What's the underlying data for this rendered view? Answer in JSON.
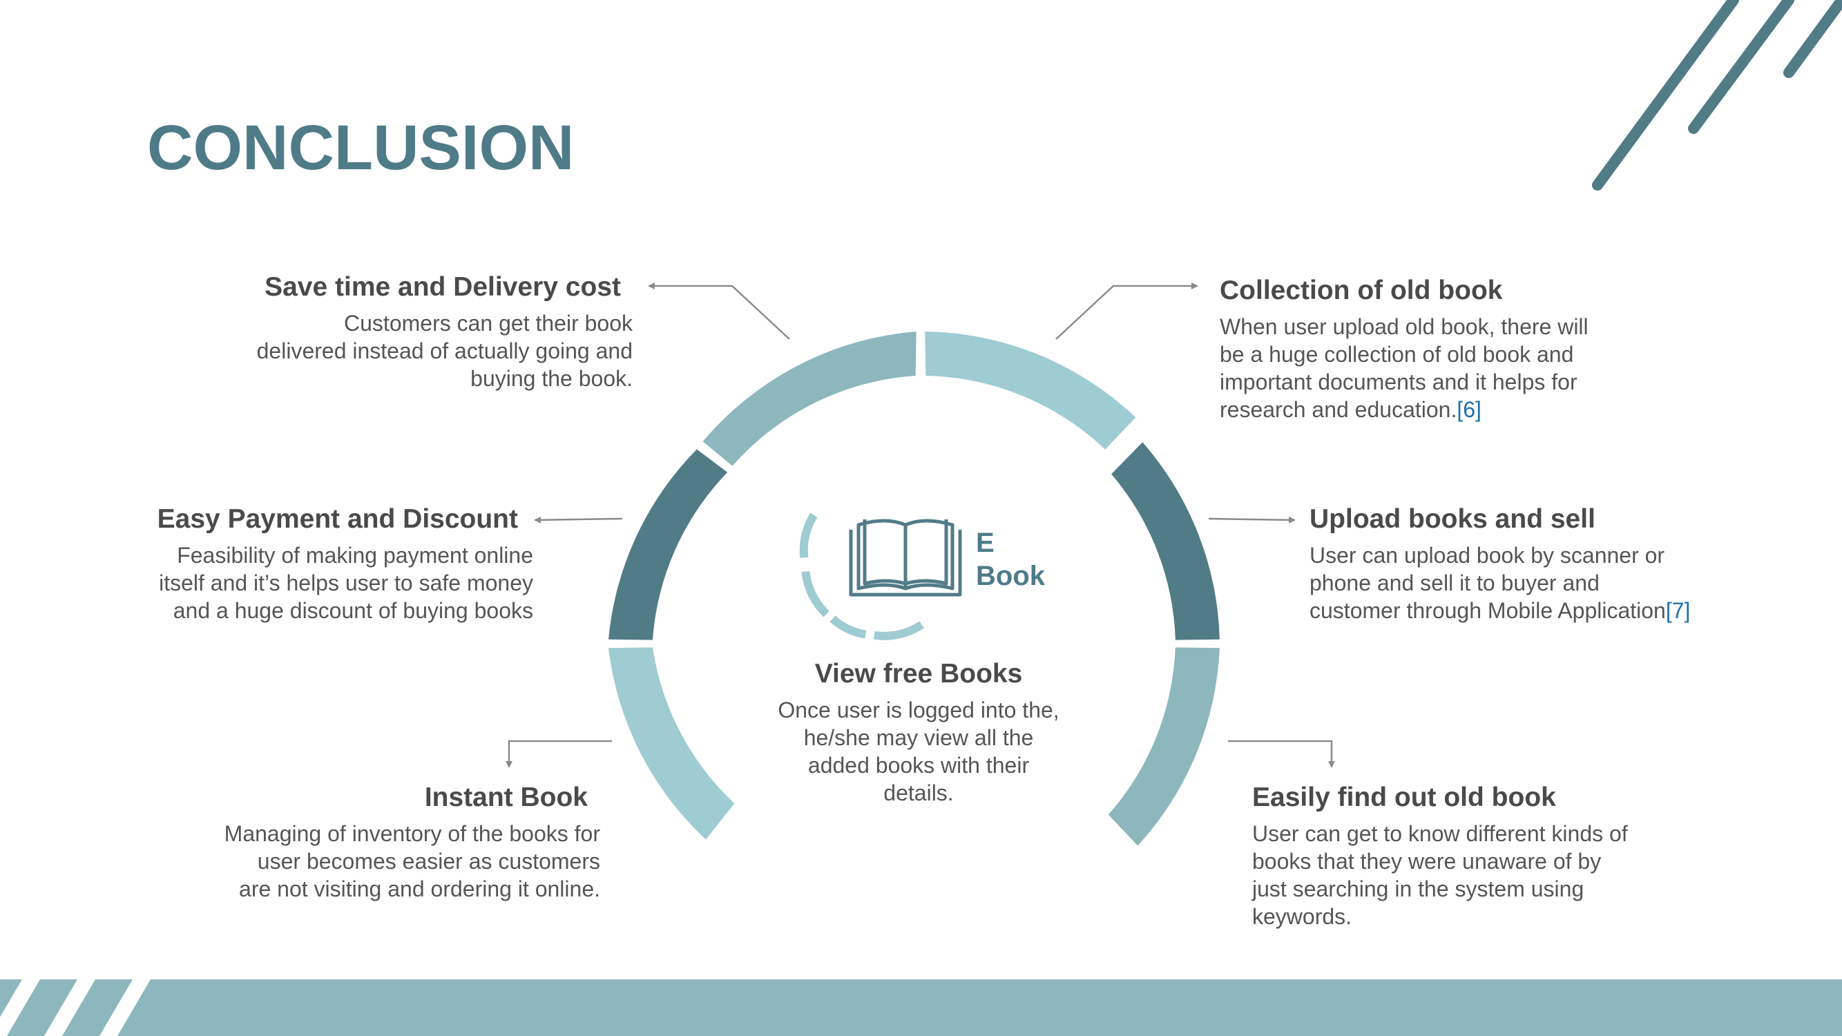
{
  "title": "CONCLUSION",
  "center": {
    "icon": "open-book-icon",
    "label_line1": "E",
    "label_line2": "Book",
    "heading": "View free Books",
    "text": [
      "Once user is logged into the,",
      "he/she may view all the",
      "added books with their",
      "details."
    ]
  },
  "items": {
    "save_time": {
      "heading": "Save time and Delivery cost",
      "text": [
        "Customers can get their book",
        "delivered instead of actually going and",
        "buying the book."
      ]
    },
    "easy_payment": {
      "heading": "Easy Payment and Discount",
      "text": [
        "Feasibility of making payment online",
        "itself and it’s helps user to safe money",
        "and a huge discount of buying books"
      ]
    },
    "instant_book": {
      "heading": "Instant Book",
      "text": [
        "Managing of inventory of the books for",
        "user becomes easier as customers",
        "are not visiting and ordering it online."
      ]
    },
    "collection": {
      "heading": "Collection of old book",
      "text": [
        "When user upload old book, there will",
        "be a huge collection of old book and",
        "important documents and it helps for",
        "research and education."
      ],
      "ref": "[6]"
    },
    "upload": {
      "heading": "Upload books and sell",
      "text": [
        "User can upload book by scanner or",
        "phone and sell it to  buyer and",
        "customer through Mobile Application"
      ],
      "ref": "[7]"
    },
    "find_old": {
      "heading": "Easily find out old book",
      "text": [
        "User can get to know different kinds of",
        "books that they were unaware of by",
        "just searching in the system using",
        "keywords."
      ]
    }
  },
  "colors": {
    "dark_teal": "#527b88",
    "mid_teal": "#8db7bd",
    "light_teal": "#9fcbd2",
    "title": "#4f7b89",
    "text": "#555555",
    "reference": "#1f6fa8"
  }
}
